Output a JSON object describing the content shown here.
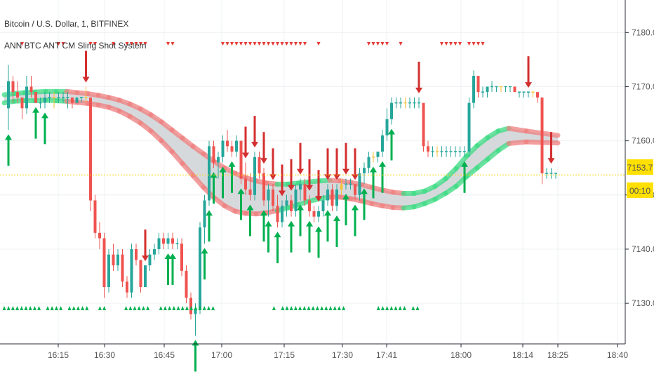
{
  "header": {
    "symbol": "Bitcoin / U.S. Dollar, 1, BITFINEX",
    "indicator": "ANN BTC ANT CM Sling Shot System"
  },
  "colors": {
    "up": "#26a69a",
    "down": "#ef5350",
    "green_ind": "#00b050",
    "red_ind": "#d32f2f",
    "yellow": "#f6c23e",
    "price_line": "#ffd400",
    "grid": "#eef0f3",
    "band_fill": "#cfd2d6"
  },
  "chart_data": {
    "type": "candlestick",
    "x_ticks": [
      "16:15",
      "16:30",
      "16:45",
      "17:00",
      "17:15",
      "17:30",
      "17:41",
      "18:00",
      "18:14",
      "18:25",
      "18:40"
    ],
    "y_ticks": [
      "7130.0",
      "7140.0",
      "7150.0",
      "7160.0",
      "7170.0",
      "7180.0"
    ],
    "ylim": [
      7122.5,
      7186
    ],
    "last_price": "7153.7",
    "countdown": "00:10",
    "candles": [
      [
        7166,
        7174,
        7162,
        7171
      ],
      [
        7171,
        7172,
        7167,
        7169
      ],
      [
        7169,
        7171,
        7167,
        7168
      ],
      [
        7168,
        7168,
        7164,
        7166
      ],
      [
        7166,
        7172,
        7165,
        7170
      ],
      [
        7170,
        7172,
        7168,
        7169
      ],
      [
        7169,
        7169,
        7167,
        7167
      ],
      [
        7167,
        7168,
        7166,
        7167
      ],
      [
        7167,
        7169,
        7166,
        7168
      ],
      [
        7168,
        7169,
        7167,
        7168
      ],
      [
        7168,
        7169,
        7166,
        7168
      ],
      [
        7168,
        7169,
        7167,
        7168
      ],
      [
        7168,
        7169,
        7167,
        7168
      ],
      [
        7168,
        7169,
        7166,
        7168
      ],
      [
        7168,
        7168,
        7166,
        7167
      ],
      [
        7167,
        7168,
        7167,
        7168
      ],
      [
        7168,
        7168,
        7167,
        7168
      ],
      [
        7168,
        7170,
        7167,
        7168
      ],
      [
        7168,
        7168,
        7147,
        7149
      ],
      [
        7149,
        7150,
        7142,
        7143
      ],
      [
        7143,
        7145,
        7140,
        7142
      ],
      [
        7142,
        7143,
        7131,
        7133
      ],
      [
        7133,
        7140,
        7132,
        7139
      ],
      [
        7139,
        7141,
        7136,
        7137
      ],
      [
        7137,
        7140,
        7136,
        7139
      ],
      [
        7139,
        7140,
        7133,
        7134
      ],
      [
        7134,
        7135,
        7131,
        7132
      ],
      [
        7132,
        7141,
        7131,
        7140
      ],
      [
        7140,
        7141,
        7137,
        7138
      ],
      [
        7138,
        7138,
        7132,
        7133
      ],
      [
        7133,
        7137,
        7133,
        7137
      ],
      [
        7137,
        7140,
        7136,
        7139
      ],
      [
        7139,
        7141,
        7138,
        7140
      ],
      [
        7140,
        7143,
        7139,
        7142
      ],
      [
        7142,
        7143,
        7140,
        7141
      ],
      [
        7141,
        7143,
        7140,
        7142
      ],
      [
        7142,
        7143,
        7140,
        7141
      ],
      [
        7141,
        7142,
        7140,
        7141
      ],
      [
        7141,
        7142,
        7135,
        7136
      ],
      [
        7136,
        7137,
        7130,
        7131
      ],
      [
        7131,
        7132,
        7127,
        7128
      ],
      [
        7128,
        7130,
        7124,
        7129
      ],
      [
        7129,
        7145,
        7128,
        7144
      ],
      [
        7144,
        7150,
        7141,
        7149
      ],
      [
        7149,
        7160,
        7148,
        7159
      ],
      [
        7159,
        7160,
        7155,
        7156
      ],
      [
        7156,
        7158,
        7153,
        7157
      ],
      [
        7157,
        7161,
        7156,
        7160
      ],
      [
        7160,
        7162,
        7158,
        7159
      ],
      [
        7159,
        7160,
        7157,
        7158
      ],
      [
        7158,
        7161,
        7157,
        7160
      ],
      [
        7160,
        7160,
        7152,
        7153
      ],
      [
        7153,
        7156,
        7150,
        7151
      ],
      [
        7151,
        7154,
        7149,
        7150
      ],
      [
        7150,
        7158,
        7149,
        7157
      ],
      [
        7157,
        7158,
        7153,
        7154
      ],
      [
        7154,
        7155,
        7148,
        7149
      ],
      [
        7149,
        7152,
        7146,
        7151
      ],
      [
        7151,
        7152,
        7147,
        7148
      ],
      [
        7148,
        7150,
        7144,
        7145
      ],
      [
        7145,
        7149,
        7144,
        7148
      ],
      [
        7148,
        7150,
        7146,
        7149
      ],
      [
        7149,
        7150,
        7146,
        7147
      ],
      [
        7147,
        7152,
        7146,
        7151
      ],
      [
        7151,
        7153,
        7149,
        7152
      ],
      [
        7152,
        7153,
        7148,
        7149
      ],
      [
        7149,
        7150,
        7146,
        7147
      ],
      [
        7147,
        7148,
        7145,
        7146
      ],
      [
        7146,
        7148,
        7145,
        7147
      ],
      [
        7147,
        7150,
        7146,
        7149
      ],
      [
        7149,
        7152,
        7148,
        7151
      ],
      [
        7151,
        7152,
        7147,
        7148
      ],
      [
        7148,
        7152,
        7147,
        7151
      ],
      [
        7151,
        7153,
        7150,
        7152
      ],
      [
        7152,
        7153,
        7151,
        7152
      ],
      [
        7152,
        7153,
        7151,
        7152
      ],
      [
        7152,
        7152,
        7149,
        7150
      ],
      [
        7150,
        7155,
        7149,
        7154
      ],
      [
        7154,
        7156,
        7152,
        7155
      ],
      [
        7155,
        7158,
        7154,
        7157
      ],
      [
        7157,
        7158,
        7156,
        7157
      ],
      [
        7157,
        7158,
        7156,
        7158
      ],
      [
        7158,
        7162,
        7157,
        7161
      ],
      [
        7161,
        7166,
        7160,
        7164
      ],
      [
        7164,
        7168,
        7163,
        7167
      ],
      [
        7167,
        7168,
        7166,
        7167
      ],
      [
        7167,
        7168,
        7166,
        7167
      ],
      [
        7167,
        7168,
        7166,
        7167
      ],
      [
        7167,
        7168,
        7166,
        7167
      ],
      [
        7167,
        7168,
        7166,
        7167
      ],
      [
        7167,
        7168,
        7166,
        7167
      ],
      [
        7167,
        7167,
        7158,
        7159
      ],
      [
        7159,
        7160,
        7157,
        7158
      ],
      [
        7158,
        7159,
        7157,
        7158
      ],
      [
        7158,
        7159,
        7157,
        7158
      ],
      [
        7158,
        7159,
        7157,
        7158
      ],
      [
        7158,
        7159,
        7157,
        7158
      ],
      [
        7158,
        7159,
        7157,
        7158
      ],
      [
        7158,
        7159,
        7157,
        7158
      ],
      [
        7158,
        7159,
        7157,
        7158
      ],
      [
        7158,
        7159,
        7157,
        7158
      ],
      [
        7158,
        7168,
        7157,
        7167
      ],
      [
        7167,
        7173,
        7166,
        7172
      ],
      [
        7172,
        7172,
        7168,
        7169
      ],
      [
        7169,
        7170,
        7168,
        7169
      ],
      [
        7169,
        7170,
        7168,
        7170
      ],
      [
        7170,
        7171,
        7169,
        7170
      ],
      [
        7170,
        7170,
        7169,
        7170
      ],
      [
        7170,
        7170,
        7169,
        7170
      ],
      [
        7170,
        7170,
        7169,
        7170
      ],
      [
        7170,
        7170,
        7169,
        7170
      ],
      [
        7170,
        7170,
        7169,
        7169
      ],
      [
        7169,
        7169,
        7168,
        7169
      ],
      [
        7169,
        7169,
        7168,
        7169
      ],
      [
        7169,
        7169,
        7168,
        7169
      ],
      [
        7169,
        7169,
        7168,
        7169
      ],
      [
        7169,
        7169,
        7167,
        7168
      ],
      [
        7168,
        7168,
        7152,
        7154
      ],
      [
        7154,
        7155,
        7153,
        7154
      ],
      [
        7154,
        7155,
        7153,
        7154
      ],
      [
        7154,
        7154,
        7153,
        7154
      ]
    ],
    "ribbon": [
      [
        7168.5,
        7167
      ],
      [
        7168.7,
        7167.3
      ],
      [
        7168.9,
        7167.4
      ],
      [
        7169,
        7167.4
      ],
      [
        7169.1,
        7167.5
      ],
      [
        7169.1,
        7167.4
      ],
      [
        7169.1,
        7167.3
      ],
      [
        7168.9,
        7167.1
      ],
      [
        7168.7,
        7166.9
      ],
      [
        7168.4,
        7166.6
      ],
      [
        7168,
        7166.2
      ],
      [
        7167.5,
        7165.5
      ],
      [
        7166.8,
        7164.5
      ],
      [
        7165.9,
        7163.3
      ],
      [
        7164.8,
        7161.8
      ],
      [
        7163.5,
        7160
      ],
      [
        7162,
        7158
      ],
      [
        7160.5,
        7155.8
      ],
      [
        7159,
        7153.6
      ],
      [
        7157.6,
        7151.4
      ],
      [
        7156.2,
        7149.5
      ],
      [
        7155,
        7148
      ],
      [
        7154,
        7147
      ],
      [
        7153.2,
        7146.6
      ],
      [
        7152.6,
        7146.5
      ],
      [
        7152.2,
        7146.7
      ],
      [
        7152,
        7147.1
      ],
      [
        7152,
        7147.6
      ],
      [
        7152.2,
        7148.2
      ],
      [
        7152.4,
        7148.8
      ],
      [
        7152.6,
        7149.3
      ],
      [
        7152.7,
        7149.6
      ],
      [
        7152.6,
        7149.6
      ],
      [
        7152.3,
        7149.3
      ],
      [
        7151.9,
        7148.9
      ],
      [
        7151.4,
        7148.4
      ],
      [
        7150.9,
        7148
      ],
      [
        7150.5,
        7147.7
      ],
      [
        7150.3,
        7147.6
      ],
      [
        7150.3,
        7147.8
      ],
      [
        7150.7,
        7148.4
      ],
      [
        7151.6,
        7149.2
      ],
      [
        7153,
        7150.3
      ],
      [
        7154.9,
        7151.6
      ],
      [
        7157.2,
        7153.4
      ],
      [
        7159.1,
        7155
      ],
      [
        7160.6,
        7156.6
      ],
      [
        7161.8,
        7158.2
      ],
      [
        7162.3,
        7159.5
      ],
      [
        7161.8,
        7159.8
      ],
      [
        7161,
        7159.6
      ]
    ],
    "ribbon_x": [
      6,
      20,
      35,
      50,
      65,
      80,
      95,
      110,
      125,
      140,
      155,
      170,
      185,
      200,
      215,
      230,
      245,
      260,
      275,
      290,
      305,
      320,
      335,
      350,
      365,
      380,
      395,
      410,
      425,
      440,
      455,
      470,
      485,
      500,
      515,
      530,
      545,
      560,
      575,
      590,
      605,
      620,
      635,
      650,
      665,
      680,
      695,
      710,
      725,
      750,
      795
    ],
    "sell_markers_top": [
      3,
      11,
      12,
      18,
      19,
      23,
      26,
      27,
      28,
      29,
      30,
      35,
      36,
      47,
      48,
      49,
      50,
      51,
      52,
      53,
      54,
      55,
      56,
      57,
      58,
      59,
      60,
      61,
      62,
      63,
      64,
      65,
      68,
      79,
      80,
      81,
      82,
      83,
      86,
      95,
      96,
      97,
      98,
      99,
      101,
      102,
      103,
      104
    ],
    "buy_markers_bottom": [
      0,
      1,
      2,
      3,
      4,
      5,
      6,
      7,
      8,
      10,
      11,
      12,
      13,
      15,
      16,
      17,
      18,
      19,
      22,
      23,
      28,
      29,
      30,
      31,
      32,
      33,
      36,
      37,
      38,
      39,
      40,
      41,
      42,
      43,
      44,
      45,
      46,
      47,
      48,
      62,
      64,
      65,
      66,
      67,
      68,
      69,
      70,
      71,
      72,
      73,
      74,
      75,
      76,
      77,
      78,
      86,
      87,
      88,
      89,
      90,
      91,
      92,
      94,
      95
    ],
    "buy_arrows": [
      0,
      6,
      8,
      35,
      36,
      41,
      43,
      44,
      45,
      47,
      49,
      51,
      53,
      56,
      57,
      59,
      62,
      64,
      66,
      68,
      70,
      72,
      74,
      76,
      78,
      80,
      82,
      84,
      100
    ],
    "sell_arrows": [
      17,
      30,
      52,
      54,
      56,
      58,
      60,
      62,
      64,
      66,
      68,
      70,
      72,
      74,
      76,
      90,
      114,
      119
    ]
  }
}
